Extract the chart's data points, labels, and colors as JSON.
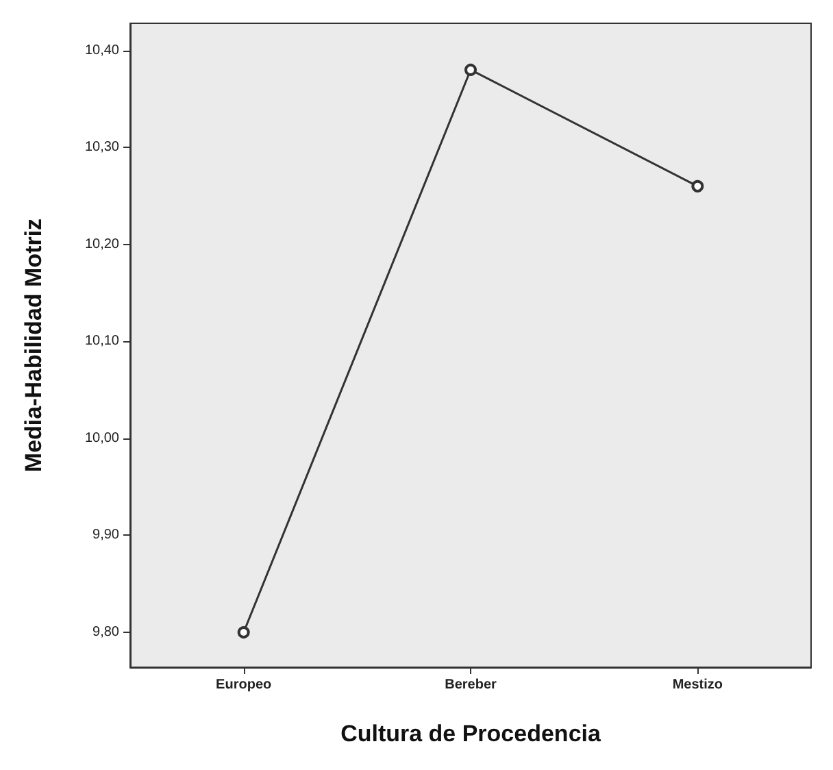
{
  "chart_data": {
    "type": "line",
    "xlabel": "Cultura de Procedencia",
    "ylabel": "Media-Habilidad Motriz",
    "categories": [
      "Europeo",
      "Bereber",
      "Mestizo"
    ],
    "series": [
      {
        "color": "#333333",
        "values": [
          9.8,
          10.38,
          10.26
        ]
      }
    ],
    "ylim": [
      9.764,
      10.428
    ],
    "yticks": [
      {
        "value": 9.8,
        "label": "9,80"
      },
      {
        "value": 9.9,
        "label": "9,90"
      },
      {
        "value": 10.0,
        "label": "10,00"
      },
      {
        "value": 10.1,
        "label": "10,10"
      },
      {
        "value": 10.2,
        "label": "10,20"
      },
      {
        "value": 10.3,
        "label": "10,30"
      },
      {
        "value": 10.4,
        "label": "10,40"
      }
    ],
    "grid": false,
    "marker": "circle",
    "line_style": "solid"
  }
}
